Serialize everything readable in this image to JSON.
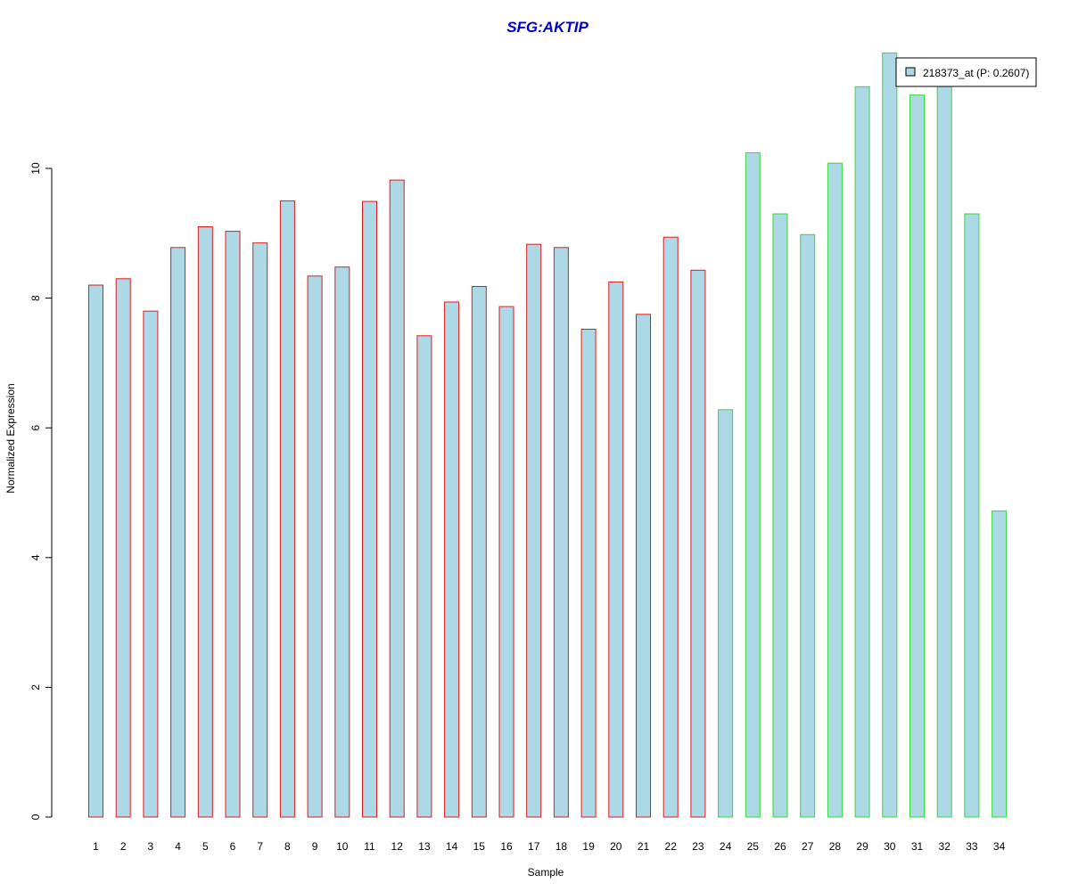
{
  "chart_data": {
    "type": "bar",
    "title": "SFG:AKTIP",
    "xlabel": "Sample",
    "ylabel": "Normalized Expression",
    "ylim": [
      0,
      12
    ],
    "yticks": [
      0,
      2,
      4,
      6,
      8,
      10
    ],
    "grid": false,
    "legend_position": "top-right",
    "categories": [
      "1",
      "2",
      "3",
      "4",
      "5",
      "6",
      "7",
      "8",
      "9",
      "10",
      "11",
      "12",
      "13",
      "14",
      "15",
      "16",
      "17",
      "18",
      "19",
      "20",
      "21",
      "22",
      "23",
      "24",
      "25",
      "26",
      "27",
      "28",
      "29",
      "30",
      "31",
      "32",
      "33",
      "34"
    ],
    "series": [
      {
        "name": "218373_at (P: 0.2607)",
        "values": [
          8.2,
          8.3,
          7.8,
          8.78,
          9.1,
          9.03,
          8.85,
          9.5,
          8.34,
          8.48,
          9.49,
          9.82,
          7.42,
          7.94,
          8.18,
          7.87,
          8.83,
          8.78,
          7.52,
          8.25,
          7.75,
          8.94,
          8.43,
          6.28,
          10.24,
          9.3,
          8.98,
          10.08,
          11.26,
          11.78,
          11.13,
          11.3,
          9.3,
          4.72
        ],
        "group": [
          "a",
          "a",
          "a",
          "a",
          "a",
          "a",
          "a",
          "a",
          "a",
          "a",
          "a",
          "a",
          "a",
          "a",
          "a",
          "a",
          "a",
          "a",
          "a",
          "a",
          "a",
          "a",
          "a",
          "b",
          "b",
          "b",
          "b",
          "b",
          "b",
          "b",
          "b",
          "b",
          "b",
          "b"
        ]
      }
    ],
    "colors": {
      "bar_fill": "#add8e6",
      "group_a_border": "#e31a1c",
      "group_b_border": "#33dd33",
      "title": "#0000cc",
      "axis": "#000000"
    }
  }
}
